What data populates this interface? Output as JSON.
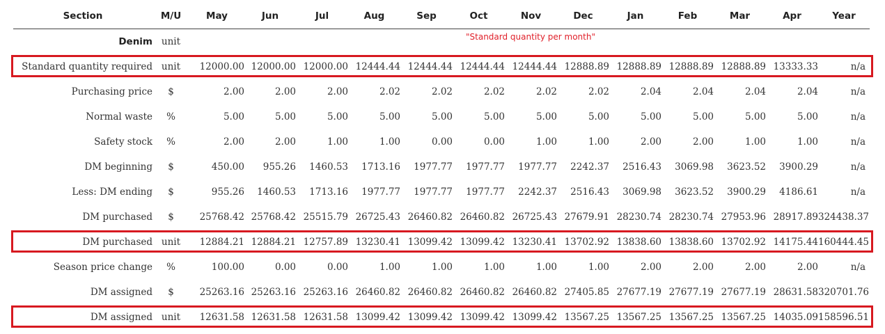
{
  "table": {
    "headers": [
      "Section",
      "M/U",
      "May",
      "Jun",
      "Jul",
      "Aug",
      "Sep",
      "Oct",
      "Nov",
      "Dec",
      "Jan",
      "Feb",
      "Mar",
      "Apr",
      "Year"
    ],
    "rows": [
      {
        "section": "Denim",
        "mu": "unit",
        "values": [
          "",
          "",
          "",
          "",
          "",
          "",
          "",
          "",
          "",
          "",
          "",
          ""
        ],
        "year": ""
      },
      {
        "section": "Standard quantity required",
        "mu": "unit",
        "values": [
          "12000.00",
          "12000.00",
          "12000.00",
          "12444.44",
          "12444.44",
          "12444.44",
          "12444.44",
          "12888.89",
          "12888.89",
          "12888.89",
          "12888.89",
          "13333.33"
        ],
        "year": "n/a"
      },
      {
        "section": "Purchasing price",
        "mu": "$",
        "values": [
          "2.00",
          "2.00",
          "2.00",
          "2.02",
          "2.02",
          "2.02",
          "2.02",
          "2.02",
          "2.04",
          "2.04",
          "2.04",
          "2.04"
        ],
        "year": "n/a"
      },
      {
        "section": "Normal waste",
        "mu": "%",
        "values": [
          "5.00",
          "5.00",
          "5.00",
          "5.00",
          "5.00",
          "5.00",
          "5.00",
          "5.00",
          "5.00",
          "5.00",
          "5.00",
          "5.00"
        ],
        "year": "n/a"
      },
      {
        "section": "Safety stock",
        "mu": "%",
        "values": [
          "2.00",
          "2.00",
          "1.00",
          "1.00",
          "0.00",
          "0.00",
          "1.00",
          "1.00",
          "2.00",
          "2.00",
          "1.00",
          "1.00"
        ],
        "year": "n/a"
      },
      {
        "section": "DM beginning",
        "mu": "$",
        "values": [
          "450.00",
          "955.26",
          "1460.53",
          "1713.16",
          "1977.77",
          "1977.77",
          "1977.77",
          "2242.37",
          "2516.43",
          "3069.98",
          "3623.52",
          "3900.29"
        ],
        "year": "n/a"
      },
      {
        "section": "Less: DM ending",
        "mu": "$",
        "values": [
          "955.26",
          "1460.53",
          "1713.16",
          "1977.77",
          "1977.77",
          "1977.77",
          "2242.37",
          "2516.43",
          "3069.98",
          "3623.52",
          "3900.29",
          "4186.61"
        ],
        "year": "n/a"
      },
      {
        "section": "DM purchased",
        "mu": "$",
        "values": [
          "25768.42",
          "25768.42",
          "25515.79",
          "26725.43",
          "26460.82",
          "26460.82",
          "26725.43",
          "27679.91",
          "28230.74",
          "28230.74",
          "27953.96",
          "28917.89"
        ],
        "year": "324438.37"
      },
      {
        "section": "DM purchased",
        "mu": "unit",
        "values": [
          "12884.21",
          "12884.21",
          "12757.89",
          "13230.41",
          "13099.42",
          "13099.42",
          "13230.41",
          "13702.92",
          "13838.60",
          "13838.60",
          "13702.92",
          "14175.44"
        ],
        "year": "160444.45"
      },
      {
        "section": "Season price change",
        "mu": "%",
        "values": [
          "100.00",
          "0.00",
          "0.00",
          "1.00",
          "1.00",
          "1.00",
          "1.00",
          "1.00",
          "2.00",
          "2.00",
          "2.00",
          "2.00"
        ],
        "year": "n/a"
      },
      {
        "section": "DM assigned",
        "mu": "$",
        "values": [
          "25263.16",
          "25263.16",
          "25263.16",
          "26460.82",
          "26460.82",
          "26460.82",
          "26460.82",
          "27405.85",
          "27677.19",
          "27677.19",
          "27677.19",
          "28631.58"
        ],
        "year": "320701.76"
      },
      {
        "section": "DM assigned",
        "mu": "unit",
        "values": [
          "12631.58",
          "12631.58",
          "12631.58",
          "13099.42",
          "13099.42",
          "13099.42",
          "13099.42",
          "13567.25",
          "13567.25",
          "13567.25",
          "13567.25",
          "14035.09"
        ],
        "year": "158596.51"
      }
    ]
  },
  "annotation": "\"Standard quantity per month\"",
  "highlight_color": "#d71920",
  "highlighted_rows": [
    1,
    8,
    11
  ]
}
